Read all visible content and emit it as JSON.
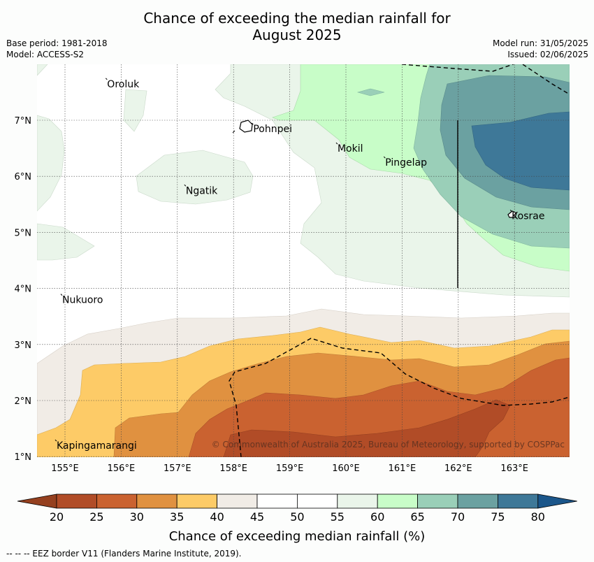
{
  "title_line1": "Chance of exceeding the median rainfall for",
  "title_line2": "August 2025",
  "meta_left": [
    "Base period: 1981-2018",
    "Model: ACCESS-S2"
  ],
  "meta_right": [
    "Model run: 31/05/2025",
    "Issued: 02/06/2025"
  ],
  "copyright": "© Commonwealth of Australia 2025, Bureau of Meteorology, supported by COSPPac",
  "footer_note": "--  --  -- EEZ border V11 (Flanders Marine Institute, 2019).",
  "axes": {
    "x_ticks": [
      "155°E",
      "156°E",
      "157°E",
      "158°E",
      "159°E",
      "160°E",
      "161°E",
      "162°E",
      "163°E"
    ],
    "y_ticks": [
      "7°N",
      "6°N",
      "5°N",
      "4°N",
      "3°N",
      "2°N",
      "1°N"
    ]
  },
  "places": [
    {
      "name": "Oroluk",
      "lon": 155.75,
      "lat": 7.65
    },
    {
      "name": "Pohnpei",
      "lon": 158.35,
      "lat": 6.85
    },
    {
      "name": "Mokil",
      "lon": 159.85,
      "lat": 6.5
    },
    {
      "name": "Pingelap",
      "lon": 160.7,
      "lat": 6.25
    },
    {
      "name": "Ngatik",
      "lon": 157.15,
      "lat": 5.75
    },
    {
      "name": "Kosrae",
      "lon": 162.95,
      "lat": 5.3
    },
    {
      "name": "Nukuoro",
      "lon": 154.95,
      "lat": 3.8
    },
    {
      "name": "Kapingamarangi",
      "lon": 154.85,
      "lat": 1.2
    }
  ],
  "colorbar": {
    "label": "Chance of exceeding median rainfall (%)",
    "ticks": [
      "20",
      "25",
      "30",
      "35",
      "40",
      "45",
      "50",
      "55",
      "60",
      "65",
      "70",
      "75",
      "80"
    ],
    "colors": [
      "#b14c27",
      "#ca6230",
      "#e09140",
      "#fdcb67",
      "#f1ece6",
      "#ffffff",
      "#ffffff",
      "#eaf5ea",
      "#c8fdc8",
      "#9acfb8",
      "#6ba1a1",
      "#3e7898"
    ],
    "low_color": "#95401f",
    "high_color": "#1b568a"
  }
}
